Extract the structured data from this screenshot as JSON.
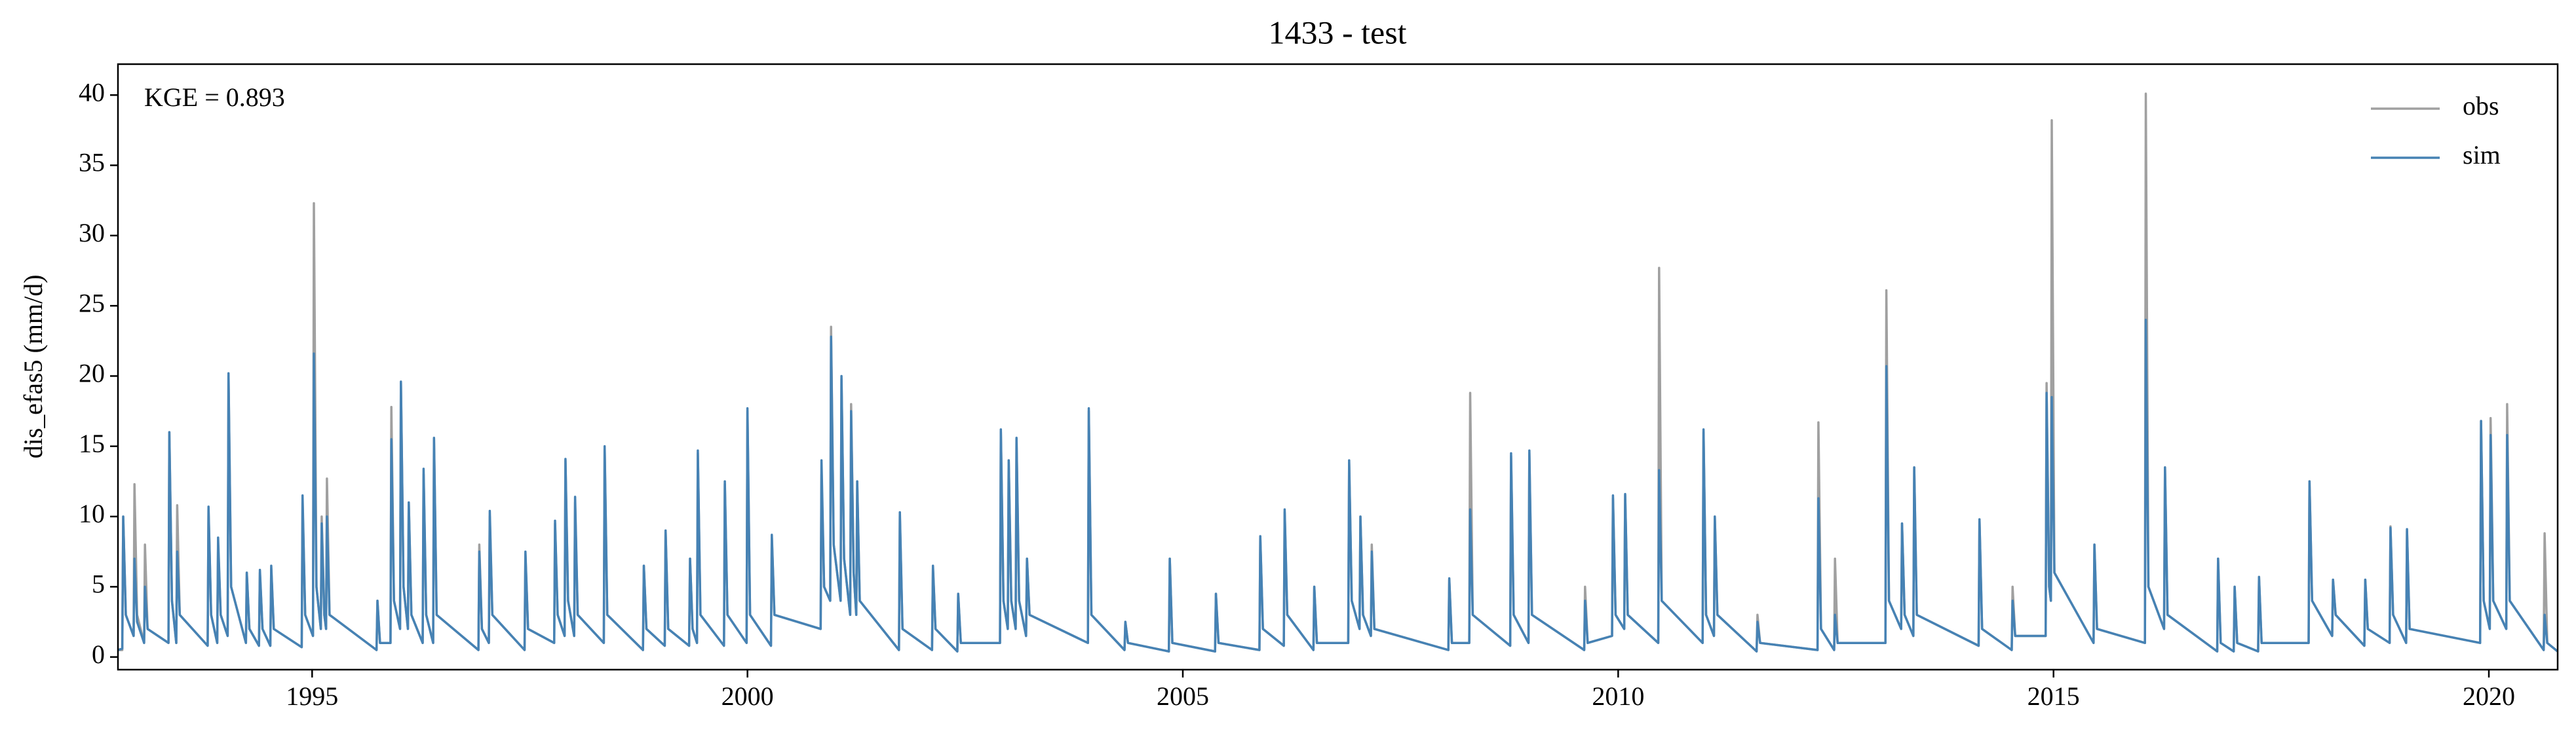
{
  "chart_data": {
    "type": "line",
    "title": "1433 - test",
    "y_label": "dis_efas5 (mm/d)",
    "annotation": "KGE = 0.893",
    "legend": "upper right",
    "grid": false,
    "xlim": [
      1992.77,
      2020.79
    ],
    "xticks": [
      1995,
      2000,
      2005,
      2010,
      2015,
      2020
    ],
    "ylim": [
      -0.9,
      42.2
    ],
    "yticks": [
      0,
      5,
      10,
      15,
      20,
      25,
      30,
      35,
      40
    ],
    "x": [
      1992.77,
      1992.82,
      1992.83,
      1992.86,
      1992.95,
      1992.96,
      1992.99,
      1993.07,
      1993.08,
      1993.11,
      1993.35,
      1993.36,
      1993.39,
      1993.44,
      1993.45,
      1993.48,
      1993.8,
      1993.81,
      1993.84,
      1993.91,
      1993.92,
      1993.95,
      1994.03,
      1994.04,
      1994.07,
      1994.24,
      1994.25,
      1994.28,
      1994.39,
      1994.4,
      1994.43,
      1994.52,
      1994.53,
      1994.56,
      1994.88,
      1994.89,
      1994.92,
      1995.01,
      1995.02,
      1995.05,
      1995.1,
      1995.11,
      1995.14,
      1995.16,
      1995.17,
      1995.2,
      1995.74,
      1995.75,
      1995.78,
      1995.9,
      1995.91,
      1995.94,
      1996.01,
      1996.02,
      1996.05,
      1996.1,
      1996.11,
      1996.14,
      1996.27,
      1996.28,
      1996.31,
      1996.39,
      1996.4,
      1996.43,
      1996.91,
      1996.92,
      1996.95,
      1997.03,
      1997.04,
      1997.07,
      1997.44,
      1997.45,
      1997.48,
      1997.78,
      1997.79,
      1997.82,
      1997.9,
      1997.91,
      1997.94,
      1998.01,
      1998.02,
      1998.05,
      1998.35,
      1998.36,
      1998.39,
      1998.8,
      1998.81,
      1998.84,
      1999.05,
      1999.06,
      1999.09,
      1999.33,
      1999.34,
      1999.37,
      1999.42,
      1999.43,
      1999.46,
      1999.73,
      1999.74,
      1999.77,
      1999.99,
      2000.0,
      2000.03,
      2000.27,
      2000.28,
      2000.31,
      2000.84,
      2000.85,
      2000.88,
      2000.95,
      2000.96,
      2000.99,
      2001.07,
      2001.08,
      2001.11,
      2001.18,
      2001.19,
      2001.22,
      2001.25,
      2001.26,
      2001.29,
      2001.74,
      2001.75,
      2001.78,
      2002.12,
      2002.13,
      2002.16,
      2002.41,
      2002.42,
      2002.45,
      2002.9,
      2002.91,
      2002.94,
      2002.99,
      2003.0,
      2003.03,
      2003.08,
      2003.09,
      2003.12,
      2003.2,
      2003.21,
      2003.24,
      2003.91,
      2003.92,
      2003.95,
      2004.33,
      2004.34,
      2004.37,
      2004.84,
      2004.85,
      2004.88,
      2005.37,
      2005.38,
      2005.41,
      2005.88,
      2005.89,
      2005.92,
      2006.16,
      2006.17,
      2006.2,
      2006.5,
      2006.51,
      2006.54,
      2006.9,
      2006.91,
      2006.94,
      2007.03,
      2007.04,
      2007.07,
      2007.16,
      2007.17,
      2007.2,
      2008.05,
      2008.06,
      2008.09,
      2008.29,
      2008.3,
      2008.33,
      2008.76,
      2008.77,
      2008.8,
      2008.97,
      2008.98,
      2009.01,
      2009.61,
      2009.62,
      2009.65,
      2009.93,
      2009.94,
      2009.97,
      2010.07,
      2010.08,
      2010.11,
      2010.46,
      2010.47,
      2010.5,
      2010.97,
      2010.98,
      2011.01,
      2011.1,
      2011.11,
      2011.14,
      2011.59,
      2011.6,
      2011.63,
      2012.29,
      2012.3,
      2012.33,
      2012.48,
      2012.49,
      2012.52,
      2013.07,
      2013.08,
      2013.11,
      2013.25,
      2013.26,
      2013.29,
      2013.39,
      2013.4,
      2013.43,
      2014.14,
      2014.15,
      2014.18,
      2014.52,
      2014.53,
      2014.56,
      2014.91,
      2014.92,
      2014.95,
      2014.97,
      2014.98,
      2015.01,
      2015.46,
      2015.47,
      2015.5,
      2016.05,
      2016.06,
      2016.09,
      2016.27,
      2016.28,
      2016.31,
      2016.88,
      2016.89,
      2016.92,
      2017.07,
      2017.08,
      2017.11,
      2017.35,
      2017.36,
      2017.39,
      2017.93,
      2017.94,
      2017.97,
      2018.2,
      2018.21,
      2018.24,
      2018.57,
      2018.58,
      2018.61,
      2018.86,
      2018.87,
      2018.9,
      2019.05,
      2019.06,
      2019.09,
      2019.9,
      2019.91,
      2019.94,
      2020.01,
      2020.02,
      2020.05,
      2020.2,
      2020.21,
      2020.24,
      2020.63,
      2020.64,
      2020.67,
      2020.79
    ],
    "series": [
      {
        "name": "obs",
        "color": "#a0a0a0",
        "values": [
          0.5,
          0.5,
          10,
          3,
          1.5,
          12.3,
          3,
          1,
          8,
          2,
          1,
          16,
          4,
          1,
          10.8,
          3,
          0.8,
          10.5,
          3,
          1,
          8,
          3,
          1.5,
          20,
          5,
          1,
          6,
          2,
          0.8,
          6,
          2,
          0.8,
          6.3,
          2,
          0.7,
          11,
          3,
          1.5,
          32.3,
          5,
          2,
          10,
          3,
          2,
          12.7,
          3,
          0.5,
          4,
          1,
          1,
          17.8,
          4,
          2,
          19.5,
          5,
          2,
          11,
          3,
          1,
          13,
          3,
          1,
          15.5,
          3,
          0.5,
          8,
          2,
          1,
          10,
          3,
          0.5,
          7.3,
          2,
          1,
          9.5,
          3,
          1.5,
          14,
          4,
          1.5,
          11,
          3,
          1,
          14.8,
          3,
          0.5,
          6.5,
          2,
          0.8,
          9,
          2,
          0.8,
          7,
          2,
          1,
          14.5,
          3,
          0.8,
          12.3,
          3,
          1,
          17.5,
          3,
          0.8,
          8.5,
          3,
          2,
          13,
          5,
          4,
          23.5,
          8,
          4,
          19.8,
          7,
          3,
          18,
          6,
          3,
          12.5,
          4,
          0.5,
          10,
          2,
          0.5,
          6.3,
          2,
          0.4,
          4.5,
          1,
          1,
          16,
          4,
          2,
          14,
          4,
          2,
          15.5,
          4,
          1.5,
          7,
          3,
          1,
          17.5,
          3,
          0.5,
          2.5,
          1,
          0.4,
          7,
          1,
          0.4,
          4.5,
          1,
          0.5,
          8.5,
          2,
          0.8,
          10.3,
          3,
          0.5,
          5,
          1,
          1,
          13.8,
          4,
          2,
          10,
          3,
          1.5,
          8,
          2,
          0.5,
          5.5,
          1,
          1,
          18.8,
          3,
          0.8,
          14.3,
          3,
          1,
          14.5,
          3,
          0.5,
          5,
          1,
          1.5,
          11.3,
          3,
          2,
          11.5,
          3,
          1,
          27.7,
          4,
          1,
          16,
          3,
          1.5,
          10,
          3,
          0.4,
          3,
          1,
          0.5,
          16.7,
          2,
          0.5,
          7,
          1,
          1,
          26.1,
          4,
          2,
          9.5,
          3,
          1.5,
          13.5,
          3,
          0.8,
          9.8,
          2,
          0.5,
          5,
          1.5,
          1.5,
          19.5,
          5,
          4,
          38.2,
          6,
          1,
          8,
          2,
          1,
          40.1,
          5,
          2,
          13.5,
          3,
          0.4,
          7,
          1,
          0.4,
          5,
          1,
          0.4,
          5.7,
          1,
          1,
          12.5,
          4,
          1.5,
          5.5,
          3,
          0.8,
          5.5,
          2,
          1,
          9.3,
          3,
          1,
          9,
          2,
          1,
          16.8,
          4,
          2,
          17,
          4,
          2,
          18,
          4,
          0.5,
          8.8,
          1,
          0.4
        ]
      },
      {
        "name": "sim",
        "color": "#4682b4",
        "values": [
          0.5,
          0.6,
          10,
          3,
          1.5,
          7,
          2.5,
          1,
          5,
          2,
          1,
          16,
          4,
          1,
          7.5,
          3,
          0.8,
          10.7,
          3,
          1,
          8.5,
          3,
          1.5,
          20.2,
          5,
          1,
          6,
          2,
          0.8,
          6.2,
          2,
          0.8,
          6.5,
          2,
          0.7,
          11.5,
          3,
          1.5,
          21.6,
          5,
          2,
          9.5,
          3,
          2,
          10,
          3,
          0.5,
          4,
          1,
          1,
          15.5,
          4,
          2,
          19.6,
          5,
          2,
          11,
          3,
          1,
          13.4,
          3,
          1,
          15.6,
          3,
          0.5,
          7.5,
          2,
          1,
          10.4,
          3,
          0.5,
          7.5,
          2,
          1,
          9.7,
          3,
          1.5,
          14.1,
          4,
          1.5,
          11.4,
          3,
          1,
          15,
          3,
          0.5,
          6.5,
          2,
          0.8,
          9,
          2,
          0.8,
          7,
          2,
          1,
          14.7,
          3,
          0.8,
          12.5,
          3,
          1,
          17.7,
          3,
          0.8,
          8.7,
          3,
          2,
          14,
          5,
          4,
          22.8,
          8,
          4,
          20,
          7,
          3,
          17.5,
          6,
          3,
          12.5,
          4,
          0.5,
          10.3,
          2,
          0.5,
          6.5,
          2,
          0.4,
          4.5,
          1,
          1,
          16.2,
          4,
          2,
          14,
          4,
          2,
          15.6,
          4,
          1.5,
          7,
          3,
          1,
          17.7,
          3,
          0.5,
          2.5,
          1,
          0.4,
          7,
          1,
          0.4,
          4.5,
          1,
          0.5,
          8.6,
          2,
          0.8,
          10.5,
          3,
          0.5,
          5,
          1,
          1,
          14,
          4,
          2,
          10,
          3,
          1.5,
          7.5,
          2,
          0.5,
          5.6,
          1,
          1,
          10.5,
          3,
          0.8,
          14.5,
          3,
          1,
          14.7,
          3,
          0.5,
          4,
          1,
          1.5,
          11.5,
          3,
          2,
          11.6,
          3,
          1,
          13.3,
          4,
          1,
          16.2,
          3,
          1.5,
          10,
          3,
          0.4,
          2.5,
          1,
          0.5,
          11.3,
          2,
          0.5,
          3,
          1,
          1,
          20.7,
          4,
          2,
          9.5,
          3,
          1.5,
          13.5,
          3,
          0.8,
          9.8,
          2,
          0.5,
          4,
          1.5,
          1.5,
          18.8,
          5,
          4,
          18.5,
          6,
          1,
          8,
          2,
          1,
          24,
          5,
          2,
          13.5,
          3,
          0.4,
          7,
          1,
          0.4,
          5,
          1,
          0.4,
          5.7,
          1,
          1,
          12.5,
          4,
          1.5,
          5.5,
          3,
          0.8,
          5.5,
          2,
          1,
          9.2,
          3,
          1,
          9.1,
          2,
          1,
          16.8,
          4,
          2,
          15.8,
          4,
          2,
          15.8,
          4,
          0.5,
          3,
          1,
          0.4
        ]
      }
    ]
  }
}
